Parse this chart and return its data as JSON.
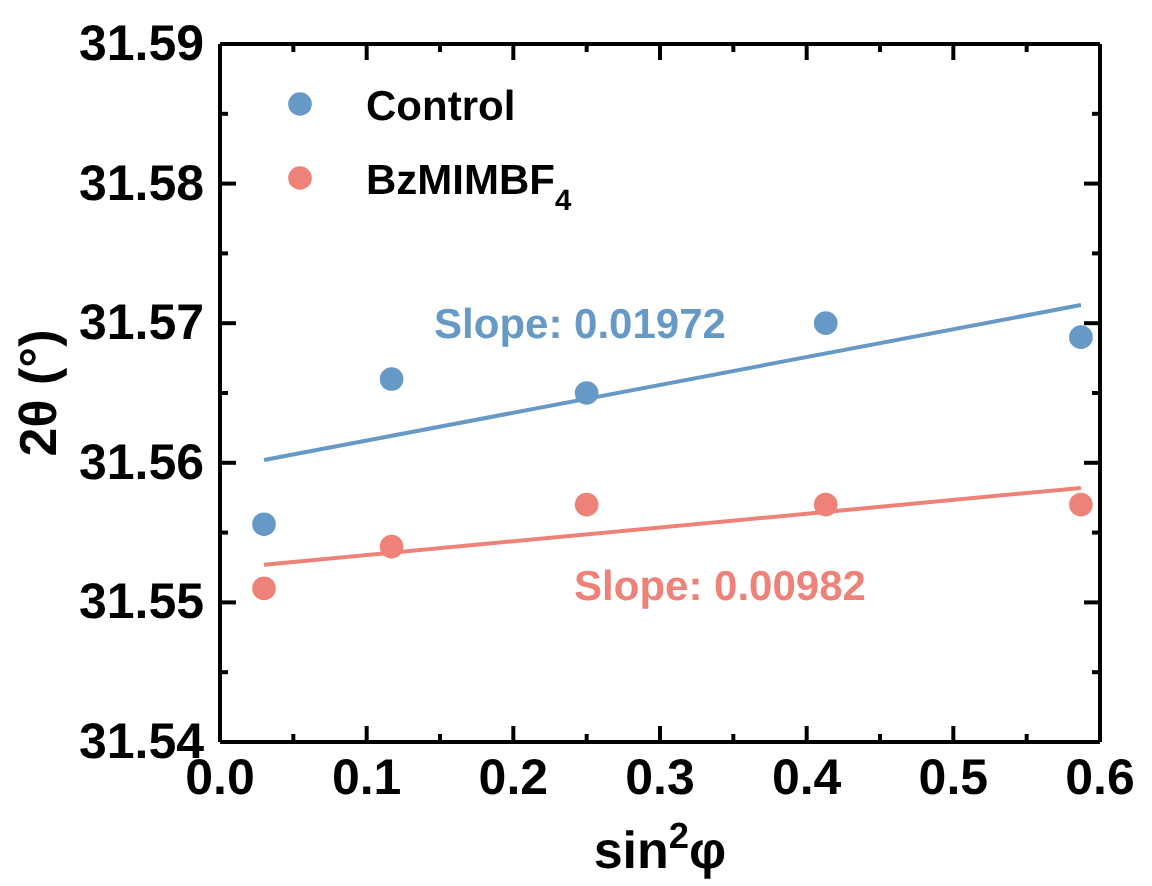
{
  "chart_data": {
    "type": "scatter",
    "xlabel": "sin$^{2}$φ",
    "ylabel": "2θ (°)",
    "xlim": [
      0,
      0.6
    ],
    "ylim": [
      31.54,
      31.59
    ],
    "xticks": [
      {
        "value": 0,
        "label": "0.0"
      },
      {
        "value": 0.05,
        "label": null
      },
      0.1,
      {
        "value": 0.15,
        "label": null
      },
      0.2,
      {
        "value": 0.25,
        "label": null
      },
      0.3,
      {
        "value": 0.35,
        "label": null
      },
      0.4,
      {
        "value": 0.45,
        "label": null
      },
      0.5,
      {
        "value": 0.55,
        "label": null
      },
      0.6
    ],
    "yticks": [
      31.54,
      {
        "value": 31.545,
        "label": null
      },
      31.55,
      {
        "value": 31.555,
        "label": null
      },
      31.56,
      {
        "value": 31.565,
        "label": null
      },
      31.57,
      {
        "value": 31.575,
        "label": null
      },
      31.58,
      {
        "value": 31.585,
        "label": null
      },
      31.59
    ],
    "grid": false,
    "legend": "top left",
    "marker": "circle",
    "series": [
      {
        "name": "Control",
        "color": "#6699c6",
        "x": [
          0.03,
          0.117,
          0.25,
          0.413,
          0.587
        ],
        "values": [
          31.5556,
          31.566,
          31.565,
          31.57,
          31.569
        ]
      },
      {
        "name": "BzMIMBF$_{4}$",
        "color": "#ef8278",
        "x": [
          0.03,
          0.117,
          0.25,
          0.413,
          0.587
        ],
        "values": [
          31.551,
          31.554,
          31.557,
          31.557,
          31.557
        ]
      },
      {
        "type": "line",
        "marker": "none",
        "color": "#6699c6",
        "x": [
          0.03,
          0.587
        ],
        "values": [
          31.5602,
          31.5713
        ]
      },
      {
        "type": "line",
        "marker": "none",
        "color": "#ef8278",
        "x": [
          0.03,
          0.587
        ],
        "values": [
          31.5527,
          31.5582
        ]
      }
    ],
    "annotations": [
      "Slope: 0.01972",
      "Slope: 0.00982"
    ]
  }
}
